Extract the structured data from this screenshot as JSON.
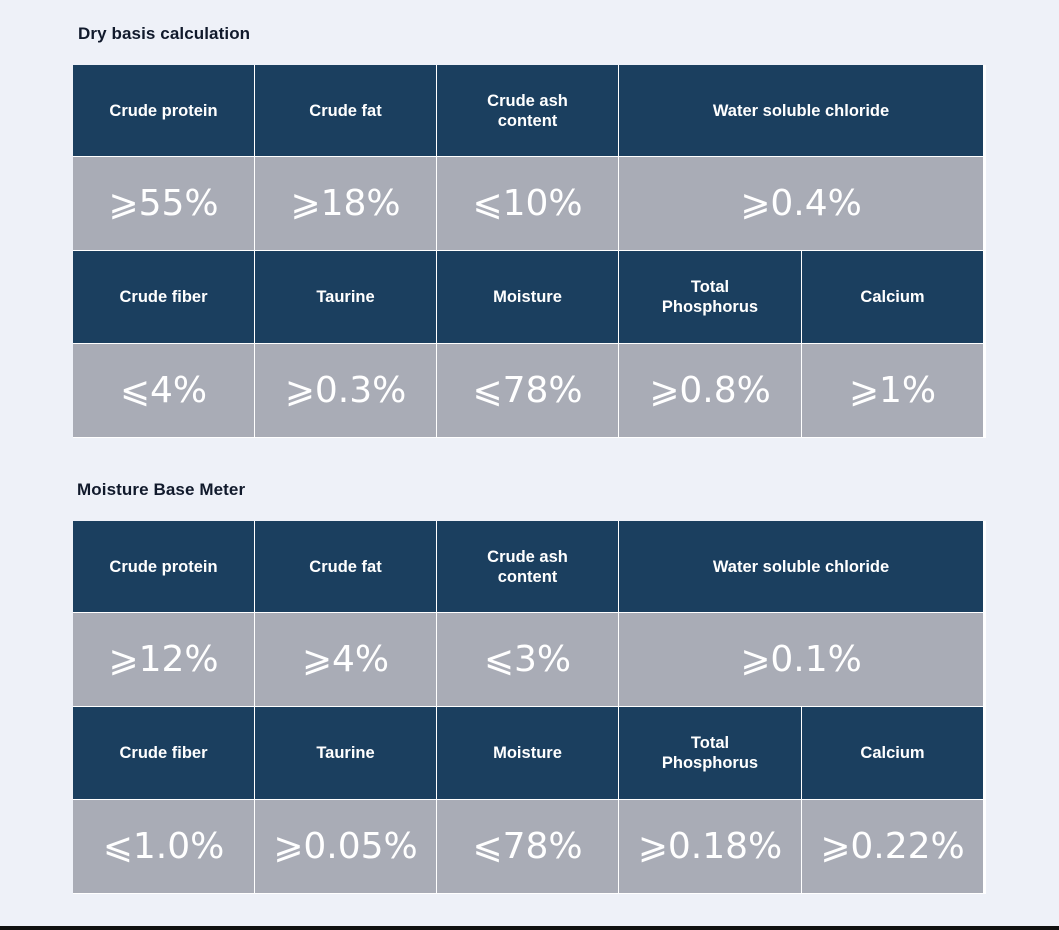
{
  "sections": [
    {
      "title": "Dry basis calculation",
      "row1_headers": [
        "Crude protein",
        "Crude fat",
        "Crude ash content",
        "Water soluble chloride"
      ],
      "row1_values": [
        "⩾55%",
        "⩾18%",
        "⩽10%",
        "⩾0.4%"
      ],
      "row2_headers": [
        "Crude fiber",
        "Taurine",
        "Moisture",
        "Total Phosphorus",
        "Calcium"
      ],
      "row2_values": [
        "⩽4%",
        "⩾0.3%",
        "⩽78%",
        "⩾0.8%",
        "⩾1%"
      ]
    },
    {
      "title": "Moisture Base Meter",
      "row1_headers": [
        "Crude protein",
        "Crude fat",
        "Crude ash content",
        "Water soluble chloride"
      ],
      "row1_values": [
        "⩾12%",
        "⩾4%",
        "⩽3%",
        "⩾0.1%"
      ],
      "row2_headers": [
        "Crude fiber",
        "Taurine",
        "Moisture",
        "Total Phosphorus",
        "Calcium"
      ],
      "row2_values": [
        "⩽1.0%",
        "⩾0.05%",
        "⩽78%",
        "⩾0.18%",
        "⩾0.22%"
      ]
    }
  ],
  "colors": {
    "header_bg": "#1b3f5f",
    "value_bg": "#a9acb6",
    "page_bg": "#eef1f8"
  }
}
